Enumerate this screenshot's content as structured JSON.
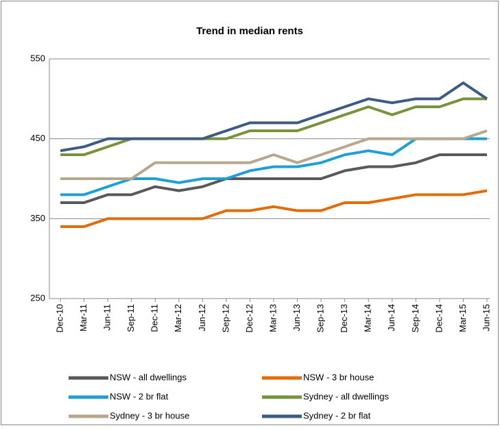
{
  "chart_data": {
    "type": "line",
    "title": "Trend in median rents",
    "categories": [
      "Dec-10",
      "Mar-11",
      "Jun-11",
      "Sep-11",
      "Dec-11",
      "Mar-12",
      "Jun-12",
      "Sep-12",
      "Dec-12",
      "Mar-13",
      "Jun-13",
      "Sep-13",
      "Dec-13",
      "Mar-14",
      "Jun-14",
      "Sep-14",
      "Dec-14",
      "Mar-15",
      "Jun-15"
    ],
    "series": [
      {
        "name": "NSW - all dwellings",
        "color": "#595959",
        "values": [
          370,
          370,
          380,
          380,
          390,
          385,
          390,
          400,
          400,
          400,
          400,
          400,
          410,
          415,
          415,
          420,
          430,
          430,
          430
        ]
      },
      {
        "name": "NSW - 3 br house",
        "color": "#e36c09",
        "values": [
          340,
          340,
          350,
          350,
          350,
          350,
          350,
          360,
          360,
          365,
          360,
          360,
          370,
          370,
          375,
          380,
          380,
          380,
          385
        ]
      },
      {
        "name": "NSW - 2 br flat",
        "color": "#1fa0d4",
        "values": [
          380,
          380,
          390,
          400,
          400,
          395,
          400,
          400,
          410,
          415,
          415,
          420,
          430,
          435,
          430,
          450,
          450,
          450,
          450
        ]
      },
      {
        "name": "Sydney - all dwellings",
        "color": "#77933c",
        "values": [
          430,
          430,
          440,
          450,
          450,
          450,
          450,
          450,
          460,
          460,
          460,
          470,
          480,
          490,
          480,
          490,
          490,
          500,
          500
        ]
      },
      {
        "name": "Sydney - 3 br house",
        "color": "#b7a78c",
        "values": [
          400,
          400,
          400,
          400,
          420,
          420,
          420,
          420,
          420,
          430,
          420,
          430,
          440,
          450,
          450,
          450,
          450,
          450,
          460
        ]
      },
      {
        "name": "Sydney - 2 br flat",
        "color": "#3e5b84",
        "values": [
          435,
          440,
          450,
          450,
          450,
          450,
          450,
          460,
          470,
          470,
          470,
          480,
          490,
          500,
          495,
          500,
          500,
          520,
          500
        ]
      }
    ],
    "ylim": [
      250,
      550
    ],
    "yticks": [
      250,
      350,
      450,
      550
    ],
    "grid": true
  }
}
